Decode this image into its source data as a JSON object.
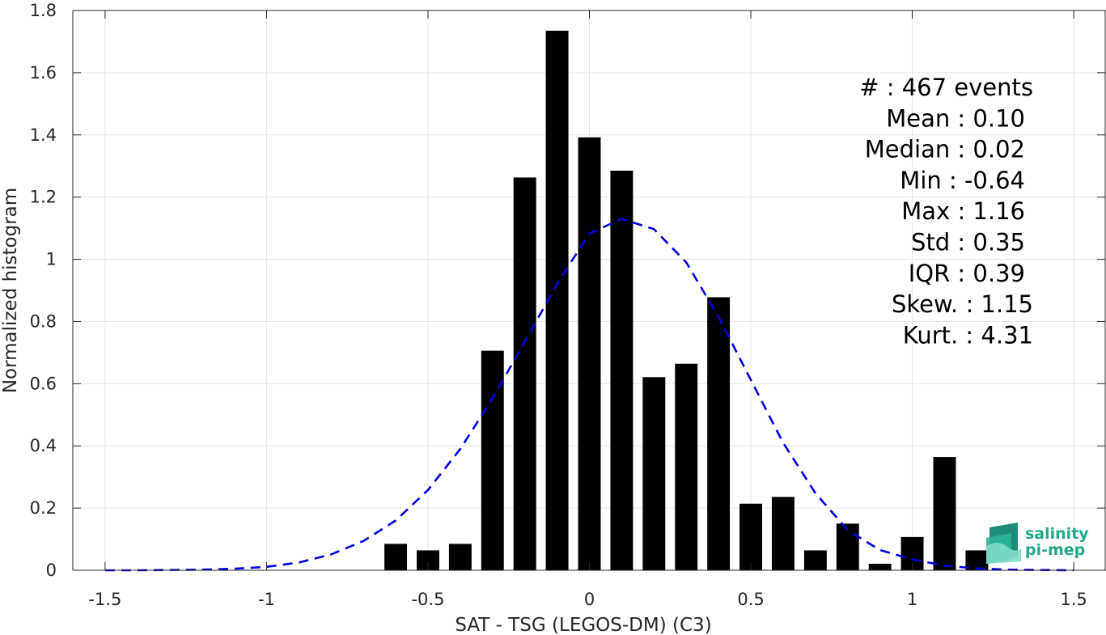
{
  "chart_data": {
    "type": "bar",
    "xlabel": "SAT - TSG (LEGOS-DM) (C3)",
    "ylabel": "Normalized histogram",
    "xlim": [
      -1.6,
      1.6
    ],
    "ylim": [
      0,
      1.8
    ],
    "xticks": [
      -1.5,
      -1,
      -0.5,
      0,
      0.5,
      1,
      1.5
    ],
    "xtick_labels": [
      "-1.5",
      "-1",
      "-0.5",
      "0",
      "0.5",
      "1",
      "1.5"
    ],
    "yticks": [
      0,
      0.2,
      0.4,
      0.6,
      0.8,
      1,
      1.2,
      1.4,
      1.6,
      1.8
    ],
    "ytick_labels": [
      "0",
      "0.2",
      "0.4",
      "0.6",
      "0.8",
      "1",
      "1.2",
      "1.4",
      "1.6",
      "1.8"
    ],
    "grid": true,
    "bar_width": 0.07,
    "bars": {
      "x": [
        -0.6,
        -0.5,
        -0.4,
        -0.3,
        -0.2,
        -0.1,
        0.0,
        0.1,
        0.2,
        0.3,
        0.4,
        0.5,
        0.6,
        0.7,
        0.8,
        0.9,
        1.0,
        1.1,
        1.2
      ],
      "values": [
        0.085,
        0.064,
        0.085,
        0.706,
        1.263,
        1.735,
        1.392,
        1.285,
        0.621,
        0.664,
        0.878,
        0.214,
        0.236,
        0.064,
        0.15,
        0.021,
        0.107,
        0.364,
        0.064
      ],
      "color": "#000000"
    },
    "fit_curve": {
      "style": "dashed",
      "color": "#0000e0",
      "x": [
        -1.5,
        -1.4,
        -1.3,
        -1.2,
        -1.1,
        -1.0,
        -0.9,
        -0.8,
        -0.7,
        -0.6,
        -0.5,
        -0.4,
        -0.3,
        -0.2,
        -0.1,
        0.0,
        0.1,
        0.2,
        0.3,
        0.4,
        0.5,
        0.6,
        0.7,
        0.8,
        0.9,
        1.0,
        1.1,
        1.2,
        1.3,
        1.4,
        1.5
      ],
      "y": [
        0.0,
        0.0,
        0.001,
        0.002,
        0.005,
        0.011,
        0.025,
        0.051,
        0.094,
        0.16,
        0.258,
        0.39,
        0.553,
        0.735,
        0.921,
        1.083,
        1.13,
        1.097,
        0.99,
        0.815,
        0.612,
        0.41,
        0.248,
        0.129,
        0.065,
        0.035,
        0.015,
        0.006,
        0.002,
        0.001,
        0.0
      ]
    },
    "stats_box": {
      "position": "top-right",
      "lines": [
        "#  : 467 events",
        "Mean : 0.10",
        "Median : 0.02",
        "Min : -0.64",
        "Max : 1.16",
        "Std : 0.35",
        "IQR : 0.39",
        "Skew. : 1.15",
        "Kurt. : 4.31"
      ]
    }
  },
  "logo": {
    "line1": "salinity",
    "line2": "pi-mep",
    "color": "#22a88a"
  }
}
